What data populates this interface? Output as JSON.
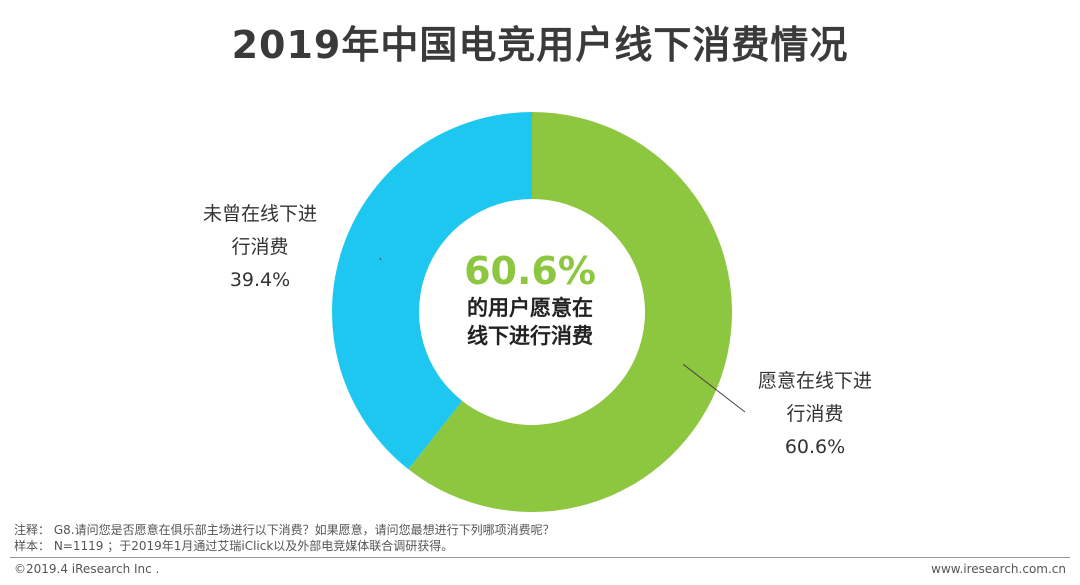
{
  "chart_data": {
    "type": "pie",
    "variant": "donut",
    "title": "2019年中国电竞用户线下消费情况",
    "categories": [
      "愿意在线下进行消费",
      "未曾在线下进行消费"
    ],
    "values": [
      60.6,
      39.4
    ],
    "unit": "%",
    "colors": [
      "#8dc63f",
      "#1ec7f0"
    ],
    "slices": [
      {
        "label_lines": [
          "愿意在线下进",
          "行消费"
        ],
        "value_text": "60.6%"
      },
      {
        "label_lines": [
          "未曾在线下进",
          "行消费"
        ],
        "value_text": "39.4%"
      }
    ],
    "center": {
      "value_text": "60.6%",
      "lines": [
        "的用户愿意在",
        "线下进行消费"
      ]
    }
  },
  "notes": {
    "note": "注释： G8.请问您是否愿意在俱乐部主场进行以下消费？如果愿意，请问您最想进行下列哪项消费呢？",
    "sample": "样本： N=1119 ；于2019年1月通过艾瑞iClick以及外部电竞媒体联合调研获得。"
  },
  "footer": {
    "copyright": "©2019.4 iResearch Inc .",
    "website": "www.iresearch.com.cn"
  }
}
